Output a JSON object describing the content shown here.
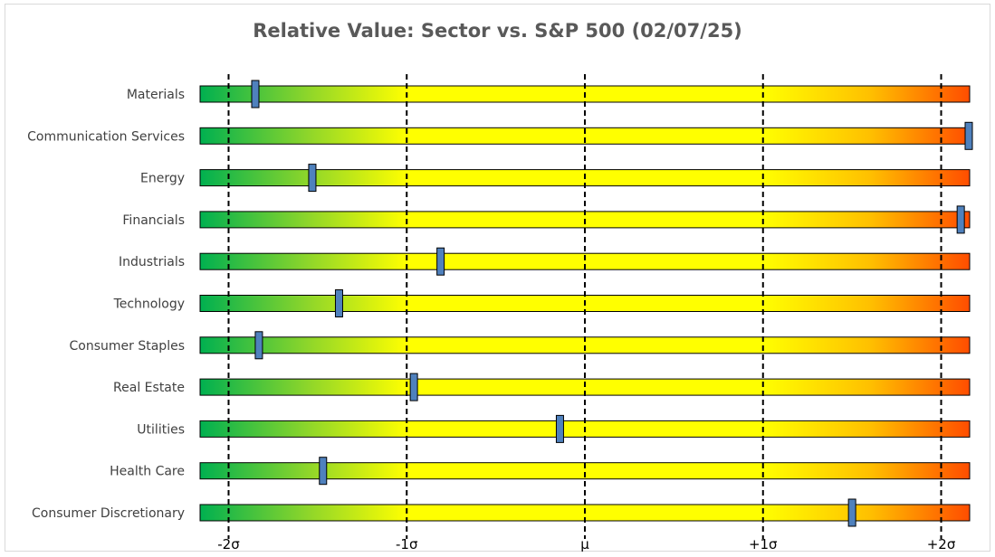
{
  "chart_data": {
    "type": "bar",
    "title": "Relative Value: Sector vs. S&P 500 (02/07/25)",
    "categories": [
      "Materials",
      "Communication Services",
      "Energy",
      "Financials",
      "Industrials",
      "Technology",
      "Consumer Staples",
      "Real Estate",
      "Utilities",
      "Health Care",
      "Consumer Discretionary"
    ],
    "series": [
      {
        "values": [
          -1.85,
          2.16,
          -1.53,
          2.11,
          -0.81,
          -1.38,
          -1.83,
          -0.96,
          -0.14,
          -1.47,
          1.5
        ]
      }
    ],
    "xlim": [
      -2.16,
      2.16
    ],
    "x_ticks": [
      {
        "value": -2,
        "label": "-2σ"
      },
      {
        "value": -1,
        "label": "-1σ"
      },
      {
        "value": 0,
        "label": "μ"
      },
      {
        "value": 1,
        "label": "+1σ"
      },
      {
        "value": 2,
        "label": "+2σ"
      }
    ],
    "colors": {
      "low": "#00b050",
      "mid": "#ffff00",
      "high": "#ff4d00",
      "marker": "#4f81bd",
      "title": "#595959"
    },
    "grid": false,
    "legend": "none"
  }
}
